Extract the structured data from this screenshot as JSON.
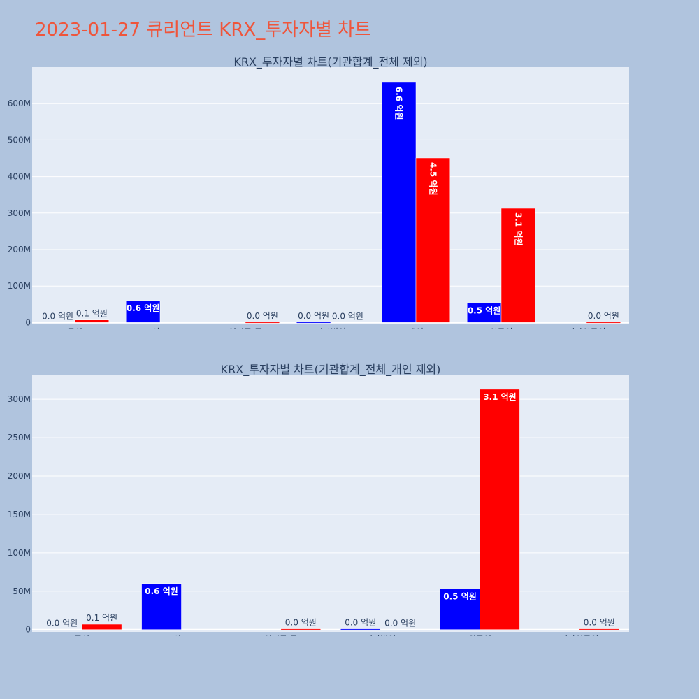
{
  "page": {
    "title": "2023-01-27 큐리언트 KRX_투자자별 차트"
  },
  "colors": {
    "background": "#b0c4de",
    "plot_background": "#e5ecf6",
    "buy": "#0000ff",
    "sell": "#ff0000",
    "title": "#ef553b",
    "text": "#2a3f5f",
    "grid": "#ffffff"
  },
  "chart_data": [
    {
      "type": "bar",
      "title": "KRX_투자자별 차트(기관합계_전체 제외)",
      "categories": [
        "투신",
        "사모",
        "연기금 등",
        "기타법인",
        "개인",
        "외국인",
        "기타외국인"
      ],
      "series": [
        {
          "color": "#0000ff",
          "values": [
            0,
            60000000,
            0,
            1000000,
            658000000,
            53000000,
            0
          ],
          "labels": [
            "0.0 억원",
            "0.6 억원",
            "",
            "0.0 억원",
            "6.6 억원",
            "0.5 억원",
            ""
          ]
        },
        {
          "color": "#ff0000",
          "values": [
            7000000,
            0,
            1000000,
            0,
            451000000,
            313000000,
            1000000
          ],
          "labels": [
            "0.1 억원",
            "",
            "0.0 억원",
            "0.0 억원",
            "4.5 억원",
            "3.1 억원",
            "0.0 억원"
          ]
        }
      ],
      "yticks": [
        0,
        100000000,
        200000000,
        300000000,
        400000000,
        500000000,
        600000000
      ],
      "ytick_labels": [
        "0",
        "100M",
        "200M",
        "300M",
        "400M",
        "500M",
        "600M"
      ],
      "ylim": [
        -5000000,
        700000000
      ],
      "grid": true
    },
    {
      "type": "bar",
      "title": "KRX_투자자별 차트(기관합계_전체_개인 제외)",
      "categories": [
        "투신",
        "사모",
        "연기금 등",
        "기타법인",
        "외국인",
        "기타외국인"
      ],
      "series": [
        {
          "color": "#0000ff",
          "values": [
            0,
            60000000,
            0,
            1000000,
            53000000,
            0
          ],
          "labels": [
            "0.0 억원",
            "0.6 억원",
            "",
            "0.0 억원",
            "0.5 억원",
            ""
          ]
        },
        {
          "color": "#ff0000",
          "values": [
            7000000,
            0,
            1000000,
            0,
            313000000,
            1000000
          ],
          "labels": [
            "0.1 억원",
            "",
            "0.0 억원",
            "0.0 억원",
            "3.1 억원",
            "0.0 억원"
          ]
        }
      ],
      "yticks": [
        0,
        50000000,
        100000000,
        150000000,
        200000000,
        250000000,
        300000000
      ],
      "ytick_labels": [
        "0",
        "50M",
        "100M",
        "150M",
        "200M",
        "250M",
        "300M"
      ],
      "ylim": [
        -3000000,
        332000000
      ],
      "grid": true
    }
  ]
}
